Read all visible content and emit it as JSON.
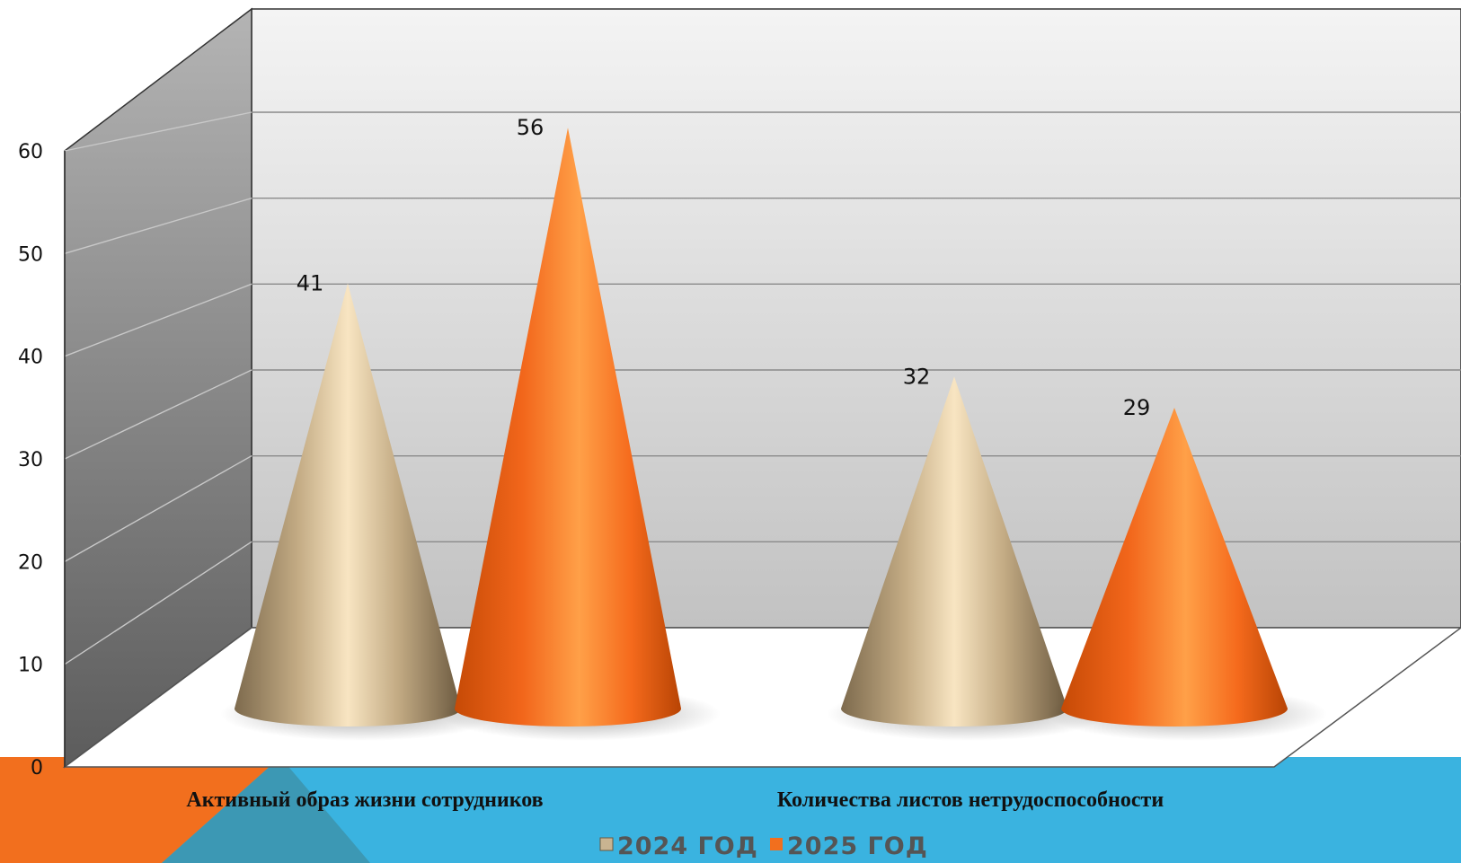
{
  "chart_data": {
    "type": "bar",
    "shape": "cone",
    "categories": [
      "Активный образ жизни сотрудников",
      "Количества листов нетрудоспособности"
    ],
    "series": [
      {
        "name": "2024 ГОД",
        "color": "#c9b491",
        "values": [
          41,
          32
        ]
      },
      {
        "name": "2025 ГОД",
        "color": "#f26f1e",
        "values": [
          56,
          29
        ]
      }
    ],
    "ylim": [
      0,
      60
    ],
    "yticks": [
      "0",
      "10",
      "20",
      "30",
      "40",
      "50",
      "60"
    ],
    "grid": true,
    "legend": "bottom"
  },
  "colors": {
    "banner_blue": "#3ab3e0",
    "banner_orange": "#f26f1e",
    "banner_teal": "#3c98b4",
    "wall_back": "#dcdcdc",
    "wall_side": "#8c8c8c",
    "floor": "#ffffff"
  }
}
